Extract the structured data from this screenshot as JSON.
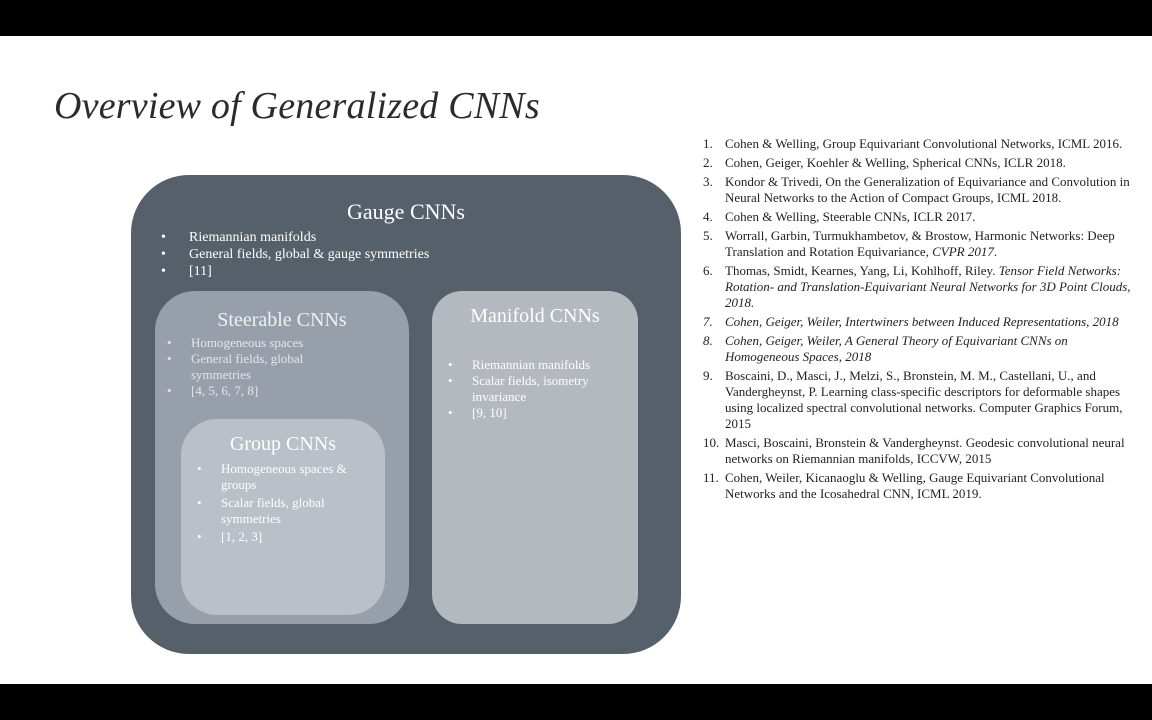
{
  "slide": {
    "title": "Overview of Generalized CNNs"
  },
  "diagram": {
    "gauge": {
      "title": "Gauge CNNs",
      "items": [
        "Riemannian manifolds",
        "General fields, global & gauge symmetries",
        "[11]"
      ]
    },
    "steerable": {
      "title": "Steerable CNNs",
      "items": [
        "Homogeneous spaces",
        "General fields, global symmetries",
        "[4, 5, 6, 7, 8]"
      ]
    },
    "group": {
      "title": "Group CNNs",
      "items": [
        "Homogeneous spaces & groups",
        "Scalar fields, global symmetries",
        "[1, 2, 3]"
      ]
    },
    "manifold": {
      "title": "Manifold CNNs",
      "items": [
        "Riemannian manifolds",
        "Scalar fields, isometry invariance",
        "[9, 10]"
      ]
    }
  },
  "references": [
    {
      "num": "1.",
      "text": "Cohen & Welling, Group Equivariant Convolutional Networks, ICML 2016."
    },
    {
      "num": "2.",
      "text": "Cohen, Geiger, Koehler & Welling, Spherical CNNs, ICLR 2018."
    },
    {
      "num": "3.",
      "text": "Kondor & Trivedi, On the Generalization of Equivariance and Convolution in Neural Networks to the Action of Compact Groups, ICML 2018."
    },
    {
      "num": "4.",
      "text": "Cohen & Welling, Steerable CNNs, ICLR 2017."
    },
    {
      "num": "5.",
      "text": "Worrall, Garbin, Turmukhambetov, & Brostow, Harmonic Networks: Deep Translation and Rotation Equivariance, ",
      "italic": "CVPR 2017",
      "after": "."
    },
    {
      "num": "6.",
      "text": "Thomas, Smidt, Kearnes, Yang, Li, Kohlhoff, Riley. ",
      "italic": "Tensor Field Networks: Rotation- and Translation-Equivariant Neural Networks for 3D Point Clouds, 2018."
    },
    {
      "num": "7.",
      "italic": "Cohen, Geiger, Weiler, Intertwiners between Induced Representations, 2018"
    },
    {
      "num": "8.",
      "italic": "Cohen, Geiger, Weiler, A General Theory of Equivariant CNNs on Homogeneous Spaces, 2018"
    },
    {
      "num": "9.",
      "text": "Boscaini, D., Masci, J., Melzi, S., Bronstein, M. M., Castellani, U., and Vandergheynst, P. Learning class-specific descriptors for deformable shapes using localized spectral convolutional networks. Computer Graphics Forum, 2015"
    },
    {
      "num": "10.",
      "text": "Masci, Boscaini, Bronstein & Vandergheynst. Geodesic convolutional neural networks on Riemannian manifolds, ICCVW,  2015"
    },
    {
      "num": "11.",
      "text": "Cohen, Weiler, Kicanaoglu & Welling, Gauge Equivariant Convolutional Networks and the Icosahedral CNN, ICML 2019."
    }
  ]
}
